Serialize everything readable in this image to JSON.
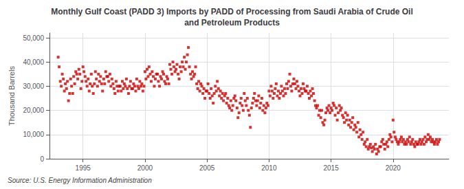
{
  "chart_data": {
    "type": "scatter",
    "title": "Monthly Gulf Coast (PADD 3) Imports by PADD of Processing from Saudi Arabia of Crude Oil\nand Petroleum Products",
    "ylabel": "Thousand Barrels",
    "source": "Source: U.S. Energy Information Administration",
    "color": "#cc0000",
    "marker": "square",
    "grid": true,
    "xlim": [
      1992.3,
      2024.5
    ],
    "xticks": [
      1995,
      2000,
      2005,
      2010,
      2015,
      2020
    ],
    "ylim": [
      0,
      52000
    ],
    "yticks": [
      0,
      {
        "value": 10000,
        "label": "10,000"
      },
      {
        "value": 20000,
        "label": "20,000"
      },
      {
        "value": 30000,
        "label": "30,000"
      },
      {
        "value": 40000,
        "label": "40,000"
      },
      {
        "value": 50000,
        "label": "50,000"
      }
    ],
    "x": [
      1993.0,
      1993.08,
      1993.17,
      1993.25,
      1993.33,
      1993.42,
      1993.5,
      1993.58,
      1993.67,
      1993.75,
      1993.83,
      1993.92,
      1994.0,
      1994.08,
      1994.17,
      1994.25,
      1994.33,
      1994.42,
      1994.5,
      1994.58,
      1994.67,
      1994.75,
      1994.83,
      1994.92,
      1995.0,
      1995.08,
      1995.17,
      1995.25,
      1995.33,
      1995.42,
      1995.5,
      1995.58,
      1995.67,
      1995.75,
      1995.83,
      1995.92,
      1996.0,
      1996.08,
      1996.17,
      1996.25,
      1996.33,
      1996.42,
      1996.5,
      1996.58,
      1996.67,
      1996.75,
      1996.83,
      1996.92,
      1997.0,
      1997.08,
      1997.17,
      1997.25,
      1997.33,
      1997.42,
      1997.5,
      1997.58,
      1997.67,
      1997.75,
      1997.83,
      1997.92,
      1998.0,
      1998.08,
      1998.17,
      1998.25,
      1998.33,
      1998.42,
      1998.5,
      1998.58,
      1998.67,
      1998.75,
      1998.83,
      1998.92,
      1999.0,
      1999.08,
      1999.17,
      1999.25,
      1999.33,
      1999.42,
      1999.5,
      1999.58,
      1999.67,
      1999.75,
      1999.83,
      1999.92,
      2000.0,
      2000.08,
      2000.17,
      2000.25,
      2000.33,
      2000.42,
      2000.5,
      2000.58,
      2000.67,
      2000.75,
      2000.83,
      2000.92,
      2001.0,
      2001.08,
      2001.17,
      2001.25,
      2001.33,
      2001.42,
      2001.5,
      2001.58,
      2001.67,
      2001.75,
      2001.83,
      2001.92,
      2002.0,
      2002.08,
      2002.17,
      2002.25,
      2002.33,
      2002.42,
      2002.5,
      2002.58,
      2002.67,
      2002.75,
      2002.83,
      2002.92,
      2003.0,
      2003.08,
      2003.17,
      2003.25,
      2003.33,
      2003.42,
      2003.5,
      2003.58,
      2003.67,
      2003.75,
      2003.83,
      2003.92,
      2004.0,
      2004.08,
      2004.17,
      2004.25,
      2004.33,
      2004.42,
      2004.5,
      2004.58,
      2004.67,
      2004.75,
      2004.83,
      2004.92,
      2005.0,
      2005.08,
      2005.17,
      2005.25,
      2005.33,
      2005.42,
      2005.5,
      2005.58,
      2005.67,
      2005.75,
      2005.83,
      2005.92,
      2006.0,
      2006.08,
      2006.17,
      2006.25,
      2006.33,
      2006.42,
      2006.5,
      2006.58,
      2006.67,
      2006.75,
      2006.83,
      2006.92,
      2007.0,
      2007.08,
      2007.17,
      2007.25,
      2007.33,
      2007.42,
      2007.5,
      2007.58,
      2007.67,
      2007.75,
      2007.83,
      2007.92,
      2008.0,
      2008.08,
      2008.17,
      2008.25,
      2008.33,
      2008.42,
      2008.5,
      2008.58,
      2008.67,
      2008.75,
      2008.83,
      2008.92,
      2009.0,
      2009.08,
      2009.17,
      2009.25,
      2009.33,
      2009.42,
      2009.5,
      2009.58,
      2009.67,
      2009.75,
      2009.83,
      2009.92,
      2010.0,
      2010.08,
      2010.17,
      2010.25,
      2010.33,
      2010.42,
      2010.5,
      2010.58,
      2010.67,
      2010.75,
      2010.83,
      2010.92,
      2011.0,
      2011.08,
      2011.17,
      2011.25,
      2011.33,
      2011.42,
      2011.5,
      2011.58,
      2011.67,
      2011.75,
      2011.83,
      2011.92,
      2012.0,
      2012.08,
      2012.17,
      2012.25,
      2012.33,
      2012.42,
      2012.5,
      2012.58,
      2012.67,
      2012.75,
      2012.83,
      2012.92,
      2013.0,
      2013.08,
      2013.17,
      2013.25,
      2013.33,
      2013.42,
      2013.5,
      2013.58,
      2013.67,
      2013.75,
      2013.83,
      2013.92,
      2014.0,
      2014.08,
      2014.17,
      2014.25,
      2014.33,
      2014.42,
      2014.5,
      2014.58,
      2014.67,
      2014.75,
      2014.83,
      2014.92,
      2015.0,
      2015.08,
      2015.17,
      2015.25,
      2015.33,
      2015.42,
      2015.5,
      2015.58,
      2015.67,
      2015.75,
      2015.83,
      2015.92,
      2016.0,
      2016.08,
      2016.17,
      2016.25,
      2016.33,
      2016.42,
      2016.5,
      2016.58,
      2016.67,
      2016.75,
      2016.83,
      2016.92,
      2017.0,
      2017.08,
      2017.17,
      2017.25,
      2017.33,
      2017.42,
      2017.5,
      2017.58,
      2017.67,
      2017.75,
      2017.83,
      2017.92,
      2018.0,
      2018.08,
      2018.17,
      2018.25,
      2018.33,
      2018.42,
      2018.5,
      2018.58,
      2018.67,
      2018.75,
      2018.83,
      2018.92,
      2019.0,
      2019.08,
      2019.17,
      2019.25,
      2019.33,
      2019.42,
      2019.5,
      2019.58,
      2019.67,
      2019.75,
      2019.83,
      2019.92,
      2020.0,
      2020.08,
      2020.17,
      2020.25,
      2020.33,
      2020.42,
      2020.5,
      2020.58,
      2020.67,
      2020.75,
      2020.83,
      2020.92,
      2021.0,
      2021.08,
      2021.17,
      2021.25,
      2021.33,
      2021.42,
      2021.5,
      2021.58,
      2021.67,
      2021.75,
      2021.83,
      2021.92,
      2022.0,
      2022.08,
      2022.17,
      2022.25,
      2022.33,
      2022.42,
      2022.5,
      2022.58,
      2022.67,
      2022.75,
      2022.83,
      2022.92,
      2023.0,
      2023.08,
      2023.17,
      2023.25,
      2023.33,
      2023.42,
      2023.5,
      2023.58,
      2023.67,
      2023.75
    ],
    "values": [
      42000,
      38000,
      32000,
      30000,
      35000,
      33000,
      28000,
      31000,
      29000,
      32000,
      24000,
      27000,
      33000,
      30000,
      27000,
      34000,
      31000,
      36000,
      35000,
      33000,
      37000,
      35000,
      29000,
      32000,
      38000,
      36000,
      34000,
      32000,
      30000,
      33000,
      28000,
      31000,
      35000,
      30000,
      27000,
      31000,
      36000,
      33000,
      30000,
      35000,
      32000,
      34000,
      31000,
      28000,
      33000,
      31000,
      36000,
      34000,
      34000,
      32000,
      35000,
      30000,
      33000,
      31000,
      29000,
      27000,
      32000,
      30000,
      28000,
      30000,
      30000,
      28000,
      32000,
      29000,
      31000,
      30000,
      33000,
      29000,
      27000,
      30000,
      32000,
      29000,
      29000,
      31000,
      30000,
      28000,
      33000,
      30000,
      29000,
      32000,
      30000,
      31000,
      28000,
      30000,
      36000,
      33000,
      37000,
      34000,
      38000,
      35000,
      32000,
      36000,
      34000,
      30000,
      33000,
      35000,
      35000,
      32000,
      30000,
      34000,
      33000,
      36000,
      35000,
      32000,
      31000,
      34000,
      33000,
      31000,
      39000,
      37000,
      35000,
      40000,
      38000,
      36000,
      37000,
      39000,
      35000,
      33000,
      38000,
      36000,
      40000,
      38000,
      42000,
      37000,
      40000,
      43000,
      46000,
      38000,
      35000,
      33000,
      36000,
      34000,
      35000,
      38000,
      31000,
      29000,
      32000,
      28000,
      31000,
      30000,
      27000,
      29000,
      25000,
      28000,
      28000,
      31000,
      27000,
      25000,
      29000,
      26000,
      23000,
      27000,
      30000,
      28000,
      32000,
      29000,
      26000,
      28000,
      25000,
      27000,
      24000,
      26000,
      27000,
      23000,
      25000,
      22000,
      21000,
      24000,
      20000,
      22000,
      25000,
      26000,
      24000,
      21000,
      17000,
      19000,
      23000,
      25000,
      22000,
      20000,
      27000,
      24000,
      22000,
      25000,
      20000,
      18000,
      13000,
      21000,
      23000,
      25000,
      27000,
      24000,
      22000,
      24000,
      26000,
      21000,
      23000,
      25000,
      20000,
      22000,
      19000,
      21000,
      23000,
      22000,
      28000,
      26000,
      30000,
      28000,
      25000,
      27000,
      29000,
      31000,
      26000,
      28000,
      25000,
      27000,
      30000,
      28000,
      26000,
      29000,
      27000,
      31000,
      29000,
      32000,
      35000,
      30000,
      28000,
      31000,
      33000,
      31000,
      29000,
      32000,
      30000,
      28000,
      26000,
      29000,
      27000,
      31000,
      29000,
      28000,
      28000,
      30000,
      27000,
      25000,
      28000,
      26000,
      29000,
      27000,
      24000,
      22000,
      21000,
      22000,
      18000,
      20000,
      17000,
      20000,
      15000,
      14000,
      16000,
      19000,
      21000,
      20000,
      22000,
      19000,
      21000,
      20000,
      23000,
      22000,
      18000,
      21000,
      16000,
      19000,
      22000,
      20000,
      21000,
      18000,
      17000,
      15000,
      19000,
      16000,
      18000,
      14000,
      16000,
      13000,
      15000,
      17000,
      12000,
      14000,
      13000,
      11000,
      15000,
      9000,
      12000,
      10000,
      8000,
      11000,
      6000,
      7000,
      5000,
      8000,
      4000,
      5000,
      6000,
      4500,
      3000,
      5000,
      4000,
      6000,
      2000,
      4000,
      3000,
      5000,
      5000,
      7000,
      8000,
      6000,
      4000,
      6000,
      7000,
      5000,
      8000,
      10000,
      9000,
      7000,
      16000,
      11000,
      9000,
      8000,
      7000,
      6000,
      7000,
      8000,
      9000,
      7000,
      8000,
      6000,
      7000,
      6000,
      8000,
      7000,
      9000,
      6000,
      7000,
      8000,
      6000,
      5000,
      7000,
      6000,
      6000,
      7000,
      8000,
      6000,
      7000,
      8000,
      6000,
      9000,
      7000,
      8000,
      10000,
      8000,
      9000,
      7000,
      8000,
      7000,
      6000,
      7000,
      8000,
      6000,
      7000,
      8000
    ]
  }
}
